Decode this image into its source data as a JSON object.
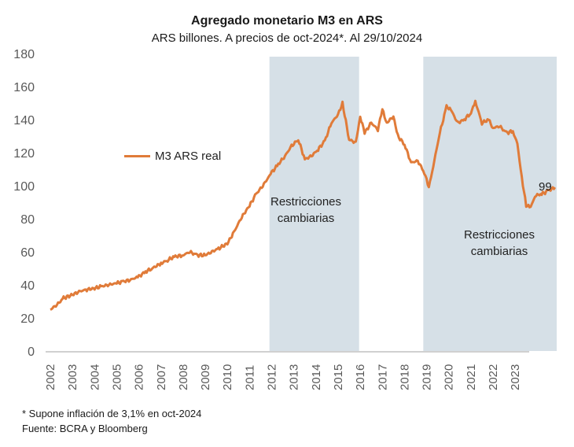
{
  "chart_data": {
    "type": "line",
    "title": "Agregado monetario M3 en ARS",
    "subtitle": "ARS billones. A precios de oct-2024*. Al 29/10/2024",
    "xlabel": "",
    "ylabel": "",
    "ylim": [
      0,
      180
    ],
    "yticks": [
      0,
      20,
      40,
      60,
      80,
      100,
      120,
      140,
      160,
      180
    ],
    "xticks": [
      "2002",
      "2003",
      "2004",
      "2005",
      "2006",
      "2007",
      "2008",
      "2009",
      "2010",
      "2011",
      "2012",
      "2013",
      "2014",
      "2015",
      "2016",
      "2017",
      "2018",
      "2019",
      "2020",
      "2021",
      "2022",
      "2023"
    ],
    "xlim": [
      2002,
      2025.8
    ],
    "grid": false,
    "legend": {
      "position": "left-middle",
      "entries": [
        "M3 ARS real"
      ]
    },
    "series": [
      {
        "name": "M3 ARS real",
        "color": "#E07B39",
        "x": [
          2002.0,
          2002.3,
          2002.6,
          2003.0,
          2003.3,
          2003.6,
          2004.0,
          2004.3,
          2004.6,
          2005.0,
          2005.3,
          2005.6,
          2006.0,
          2006.3,
          2006.6,
          2007.0,
          2007.3,
          2007.6,
          2008.0,
          2008.3,
          2008.6,
          2009.0,
          2009.3,
          2009.6,
          2010.0,
          2010.3,
          2010.6,
          2011.0,
          2011.3,
          2011.6,
          2012.0,
          2012.3,
          2012.6,
          2012.9,
          2013.2,
          2013.5,
          2013.8,
          2014.1,
          2014.4,
          2014.7,
          2015.0,
          2015.2,
          2015.5,
          2015.8,
          2016.0,
          2016.2,
          2016.5,
          2016.8,
          2017.0,
          2017.2,
          2017.5,
          2017.7,
          2018.0,
          2018.3,
          2018.6,
          2018.9,
          2019.1,
          2019.3,
          2019.6,
          2019.9,
          2020.1,
          2020.4,
          2020.7,
          2021.0,
          2021.2,
          2021.5,
          2021.8,
          2022.0,
          2022.3,
          2022.6,
          2022.9,
          2023.1,
          2023.3,
          2023.5,
          2023.7,
          2023.9,
          2024.2,
          2024.5,
          2024.8
        ],
        "values": [
          25,
          28,
          32,
          34,
          36,
          37,
          38,
          39,
          40,
          41,
          42,
          43,
          45,
          48,
          50,
          53,
          55,
          57,
          58,
          60,
          58,
          58,
          60,
          62,
          65,
          72,
          80,
          88,
          95,
          100,
          108,
          113,
          118,
          124,
          128,
          116,
          118,
          122,
          127,
          138,
          143,
          150,
          128,
          126,
          142,
          132,
          138,
          134,
          146,
          138,
          142,
          130,
          125,
          114,
          115,
          108,
          99,
          112,
          132,
          148,
          146,
          138,
          140,
          144,
          151,
          138,
          140,
          135,
          136,
          132,
          133,
          125,
          105,
          88,
          87,
          94,
          95,
          97,
          99
        ]
      }
    ],
    "shaded_regions": [
      {
        "x0": 2011.9,
        "x1": 2015.95,
        "label": [
          "Restricciones",
          "cambiarias"
        ],
        "color": "#D6E0E7"
      },
      {
        "x0": 2018.85,
        "x1": 2025.8,
        "label": [
          "Restricciones",
          "cambiarias"
        ],
        "color": "#D6E0E7"
      }
    ],
    "annotations": [
      {
        "text": "99",
        "at": "end-of-series"
      }
    ]
  },
  "footnotes": {
    "assumption": "* Supone inflación de 3,1% en oct-2024",
    "source": "Fuente: BCRA y Bloomberg"
  }
}
